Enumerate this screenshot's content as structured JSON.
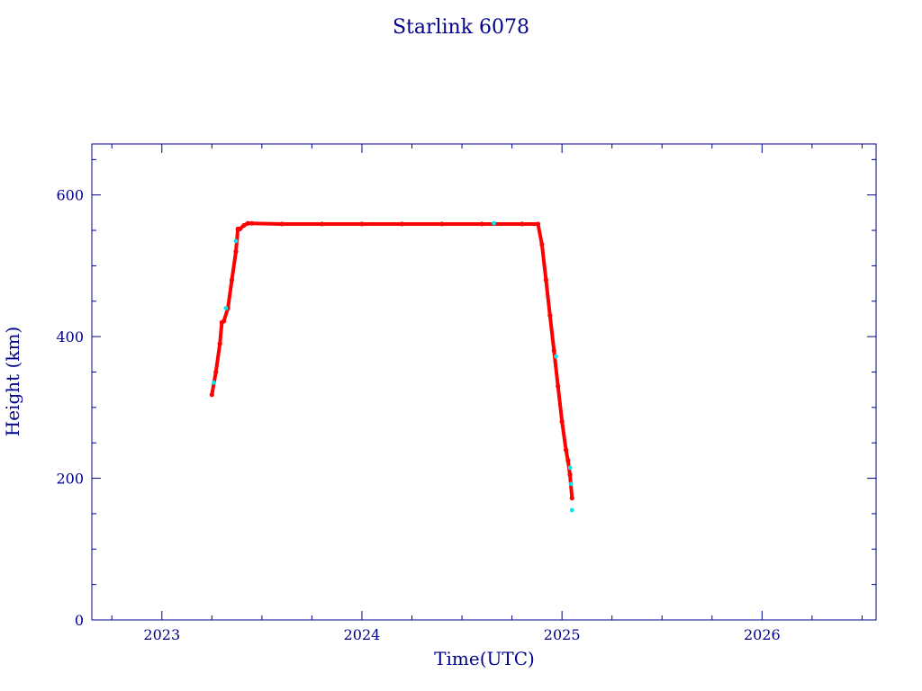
{
  "chart_data": {
    "type": "scatter",
    "title": "Starlink 6078",
    "xlabel": "Time(UTC)",
    "ylabel": "Height (km)",
    "xlim": [
      2022.65,
      2026.57
    ],
    "ylim": [
      0,
      672
    ],
    "x_ticks": [
      "2023",
      "2024",
      "2025",
      "2026"
    ],
    "y_ticks": [
      "0",
      "200",
      "400",
      "600"
    ],
    "grid": false,
    "legend": "none",
    "colors": {
      "primary": "#ff0000",
      "secondary": "#00e5ee",
      "axis": "#00008b"
    },
    "series": [
      {
        "color": "#ff0000",
        "x": [
          2023.25,
          2023.27,
          2023.29,
          2023.3,
          2023.31,
          2023.33,
          2023.35,
          2023.37,
          2023.38,
          2023.39,
          2023.41,
          2023.43,
          2023.45,
          2023.6,
          2023.8,
          2024.0,
          2024.2,
          2024.4,
          2024.6,
          2024.8,
          2024.88,
          2024.9,
          2024.92,
          2024.94,
          2024.96,
          2024.98,
          2025.0,
          2025.02,
          2025.03,
          2025.04,
          2025.05
        ],
        "y": [
          318,
          350,
          390,
          420,
          422,
          440,
          480,
          520,
          552,
          552,
          557,
          560,
          560,
          559,
          559,
          559,
          559,
          559,
          559,
          559,
          559,
          530,
          480,
          430,
          380,
          330,
          280,
          240,
          225,
          205,
          172
        ]
      },
      {
        "color": "#00e5ee",
        "x": [
          2023.26,
          2023.32,
          2023.37,
          2024.66,
          2024.97,
          2025.04,
          2025.045,
          2025.05
        ],
        "y": [
          335,
          440,
          535,
          560,
          372,
          215,
          192,
          155
        ]
      }
    ]
  }
}
